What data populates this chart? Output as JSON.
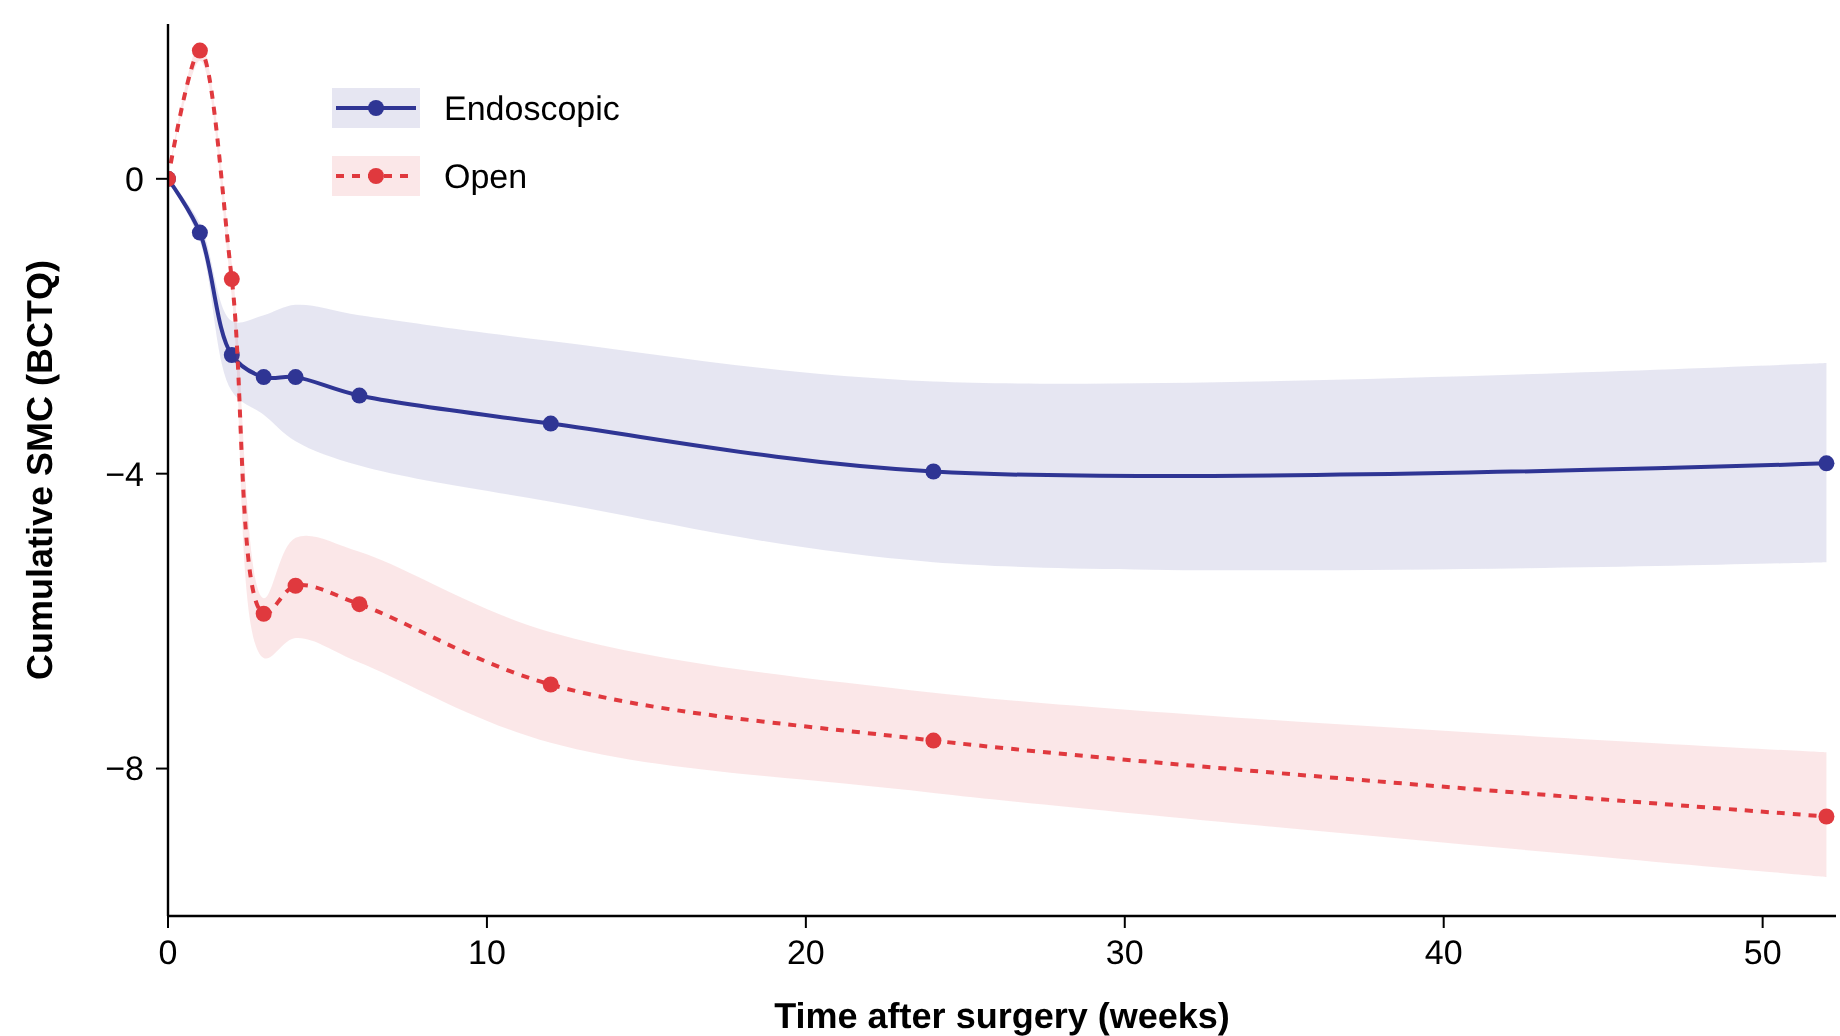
{
  "chart_data": {
    "type": "line",
    "xlabel": "Time after surgery (weeks)",
    "ylabel": "Cumulative SMC (BCTQ)",
    "xlim": [
      0,
      52.3
    ],
    "ylim": [
      -10,
      2.1
    ],
    "xticks": [
      0,
      10,
      20,
      30,
      40,
      50
    ],
    "yticks": [
      0,
      {
        "value": -4,
        "label": "−4"
      },
      {
        "value": -8,
        "label": "−8"
      }
    ],
    "grid": false,
    "legend": "top left",
    "marker": "circle",
    "x": [
      0,
      1,
      2,
      3,
      4,
      6,
      12,
      24,
      52
    ],
    "series": [
      {
        "name": "Endoscopic",
        "color": "#2f3594",
        "line_style": "solid",
        "values": [
          0,
          -0.73,
          -2.39,
          -2.69,
          -2.69,
          -2.94,
          -3.32,
          -3.97,
          -3.86
        ],
        "lower": [
          0,
          -0.85,
          -2.88,
          -3.2,
          -3.56,
          -3.89,
          -4.38,
          -5.2,
          -5.2
        ],
        "upper": [
          0,
          -0.6,
          -1.93,
          -1.85,
          -1.71,
          -1.85,
          -2.2,
          -2.75,
          -2.5
        ]
      },
      {
        "name": "Open",
        "color": "#e0393e",
        "line_style": "dashed",
        "values": [
          0,
          1.74,
          -1.36,
          -5.9,
          -5.52,
          -5.77,
          -6.86,
          -7.62,
          -8.65
        ],
        "lower": [
          0,
          1.6,
          -1.6,
          -6.5,
          -6.23,
          -6.56,
          -7.65,
          -8.33,
          -9.47
        ],
        "upper": [
          0,
          1.85,
          -1.15,
          -5.69,
          -4.87,
          -5.06,
          -6.15,
          -6.97,
          -7.78
        ]
      }
    ]
  }
}
